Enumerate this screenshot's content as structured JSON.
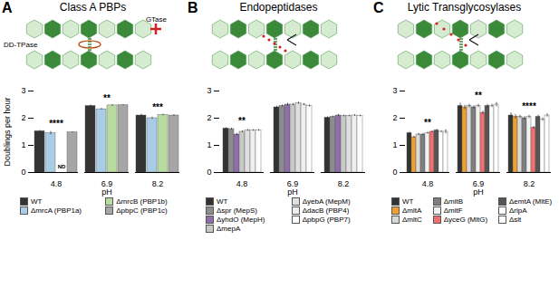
{
  "chart_data": [
    {
      "type": "bar",
      "panel": "A",
      "title": "Class A PBPs",
      "diagram_labels": [
        "GTase",
        "DD-TPase"
      ],
      "xlabel": "pH",
      "ylabel": "Doublings per hour",
      "categories": [
        "4.8",
        "6.9",
        "8.2"
      ],
      "ylim": [
        0,
        3
      ],
      "yticks": [
        0,
        1,
        2,
        3
      ],
      "grid": false,
      "series": [
        {
          "name": "WT",
          "color": "#333333",
          "values": [
            1.52,
            2.45,
            2.1
          ],
          "errors": [
            0.03,
            0.04,
            0.05
          ]
        },
        {
          "name": "ΔmrcA (PBP1a)",
          "color": "#a9cde6",
          "values": [
            1.45,
            2.33,
            2.0
          ],
          "errors": [
            0.06,
            0.03,
            0.04
          ]
        },
        {
          "name": "ΔmrcB (PBP1b)",
          "color": "#b8dca0",
          "values": [
            null,
            2.47,
            2.12
          ],
          "errors": [
            null,
            0.03,
            0.03
          ],
          "value_labels": [
            "ND",
            null,
            null
          ]
        },
        {
          "name": "ΔpbpC (PBP1c)",
          "color": "#a6a6a6",
          "values": [
            1.48,
            2.48,
            2.1
          ],
          "errors": [
            0.02,
            0.02,
            0.03
          ]
        }
      ],
      "annotations": [
        {
          "text": "****",
          "x": "4.8"
        },
        {
          "text": "**",
          "x": "6.9"
        },
        {
          "text": "***",
          "x": "8.2"
        }
      ]
    },
    {
      "type": "bar",
      "panel": "B",
      "title": "Endopeptidases",
      "xlabel": "pH",
      "categories": [
        "4.8",
        "6.9",
        "8.2"
      ],
      "ylim": [
        0,
        3
      ],
      "yticks": [
        0,
        1,
        2,
        3
      ],
      "grid": false,
      "series": [
        {
          "name": "WT",
          "color": "#333333",
          "values": [
            1.62,
            2.4,
            2.02
          ],
          "errors": [
            0.03,
            0.04,
            0.03
          ]
        },
        {
          "name": "Δspr (MepS)",
          "color": "#8c8c8c",
          "values": [
            1.6,
            2.45,
            2.05
          ],
          "errors": [
            0.03,
            0.04,
            0.03
          ]
        },
        {
          "name": "ΔyhdO (MepH)",
          "color": "#8e6fa8",
          "values": [
            1.4,
            2.5,
            2.1
          ],
          "errors": [
            0.04,
            0.05,
            0.04
          ]
        },
        {
          "name": "ΔmepA",
          "color": "#c8c8c8",
          "values": [
            1.5,
            2.5,
            2.08
          ],
          "errors": [
            0.03,
            0.04,
            0.03
          ]
        },
        {
          "name": "ΔyebA (MepM)",
          "color": "#e0e0e0",
          "values": [
            1.55,
            2.55,
            2.08
          ],
          "errors": [
            0.03,
            0.04,
            0.03
          ]
        },
        {
          "name": "ΔdacB (PBP4)",
          "color": "#efefef",
          "values": [
            1.55,
            2.5,
            2.1
          ],
          "errors": [
            0.03,
            0.04,
            0.03
          ]
        },
        {
          "name": "ΔpbpG (PBP7)",
          "color": "#ffffff",
          "values": [
            1.55,
            2.45,
            2.08
          ],
          "errors": [
            0.03,
            0.04,
            0.03
          ]
        }
      ],
      "annotations": [
        {
          "text": "**",
          "x": "4.8"
        }
      ]
    },
    {
      "type": "bar",
      "panel": "C",
      "title": "Lytic Transglycosylases",
      "xlabel": "pH",
      "categories": [
        "4.8",
        "6.9",
        "8.2"
      ],
      "ylim": [
        0,
        3
      ],
      "yticks": [
        0,
        1,
        2,
        3
      ],
      "grid": false,
      "series": [
        {
          "name": "WT",
          "color": "#333333",
          "values": [
            1.45,
            2.45,
            2.1
          ],
          "errors": [
            0.04,
            0.1,
            0.1
          ]
        },
        {
          "name": "ΔmltA",
          "color": "#f0a030",
          "values": [
            1.3,
            2.4,
            2.05
          ],
          "errors": [
            0.04,
            0.08,
            0.08
          ]
        },
        {
          "name": "ΔmltC",
          "color": "#d9d9d9",
          "values": [
            1.4,
            2.45,
            2.05
          ],
          "errors": [
            0.04,
            0.06,
            0.06
          ]
        },
        {
          "name": "ΔmltB",
          "color": "#7f7f7f",
          "values": [
            1.4,
            2.4,
            2.0
          ],
          "errors": [
            0.04,
            0.06,
            0.06
          ]
        },
        {
          "name": "ΔmltF",
          "color": "#f2f2f2",
          "values": [
            1.45,
            2.45,
            2.05
          ],
          "errors": [
            0.04,
            0.06,
            0.06
          ]
        },
        {
          "name": "ΔyceG (MltG)",
          "color": "#f07070",
          "values": [
            1.5,
            2.2,
            1.65
          ],
          "errors": [
            0.04,
            0.06,
            0.05
          ]
        },
        {
          "name": "ΔemtA (MltE)",
          "color": "#555555",
          "values": [
            1.55,
            2.45,
            2.05
          ],
          "errors": [
            0.04,
            0.06,
            0.06
          ]
        },
        {
          "name": "ΔrlpA",
          "color": "#ffffff",
          "values": [
            1.5,
            2.45,
            1.95
          ],
          "errors": [
            0.04,
            0.06,
            0.06
          ]
        },
        {
          "name": "Δslt",
          "color": "#ffffff",
          "values": [
            1.5,
            2.5,
            2.1
          ],
          "errors": [
            0.08,
            0.08,
            0.06
          ]
        }
      ],
      "annotations": [
        {
          "text": "**",
          "x": "4.8"
        },
        {
          "text": "**",
          "x": "6.9"
        },
        {
          "text": "****",
          "x": "8.2"
        }
      ]
    }
  ]
}
